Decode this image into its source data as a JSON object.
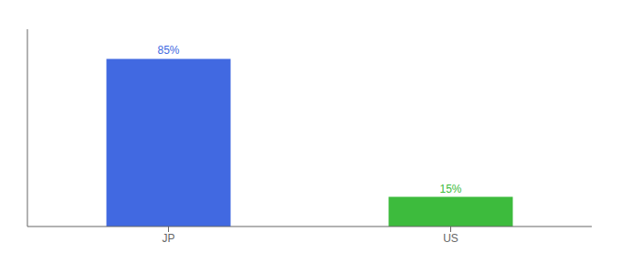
{
  "chart_data": {
    "type": "bar",
    "categories": [
      "JP",
      "US"
    ],
    "values": [
      85,
      15
    ],
    "value_labels": [
      "85%",
      "15%"
    ],
    "colors": [
      "#4169e1",
      "#3dbb3d"
    ],
    "ylim": [
      0,
      100
    ],
    "data_labels": true,
    "tick_labels": "x",
    "grid": false
  }
}
